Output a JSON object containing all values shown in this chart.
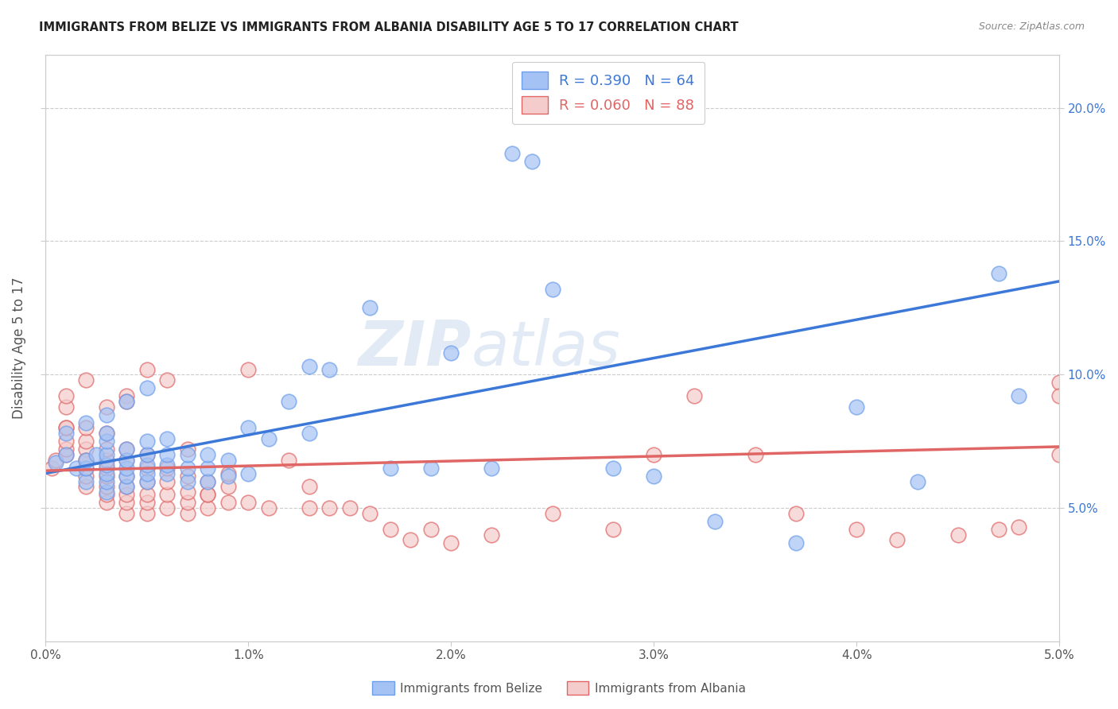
{
  "title": "IMMIGRANTS FROM BELIZE VS IMMIGRANTS FROM ALBANIA DISABILITY AGE 5 TO 17 CORRELATION CHART",
  "source": "Source: ZipAtlas.com",
  "ylabel": "Disability Age 5 to 17",
  "xlim": [
    0.0,
    0.05
  ],
  "ylim": [
    0.0,
    0.22
  ],
  "x_ticks": [
    0.0,
    0.01,
    0.02,
    0.03,
    0.04,
    0.05
  ],
  "x_tick_labels": [
    "0.0%",
    "1.0%",
    "2.0%",
    "3.0%",
    "4.0%",
    "5.0%"
  ],
  "y_ticks": [
    0.05,
    0.1,
    0.15,
    0.2
  ],
  "y_tick_labels": [
    "5.0%",
    "10.0%",
    "15.0%",
    "20.0%"
  ],
  "belize_color": "#a4c2f4",
  "albania_color": "#f4cccc",
  "belize_edge_color": "#6d9eeb",
  "albania_edge_color": "#e06666",
  "belize_line_color": "#3c78d8",
  "albania_line_color": "#cc4125",
  "legend_belize_label": "R = 0.390   N = 64",
  "legend_albania_label": "R = 0.060   N = 88",
  "legend_text_color": "#3c78d8",
  "watermark": "ZIPatlas",
  "belize_scatter_x": [
    0.0005,
    0.001,
    0.001,
    0.0015,
    0.002,
    0.002,
    0.002,
    0.002,
    0.0025,
    0.003,
    0.003,
    0.003,
    0.003,
    0.003,
    0.003,
    0.003,
    0.003,
    0.004,
    0.004,
    0.004,
    0.004,
    0.004,
    0.004,
    0.005,
    0.005,
    0.005,
    0.005,
    0.005,
    0.005,
    0.006,
    0.006,
    0.006,
    0.006,
    0.007,
    0.007,
    0.007,
    0.008,
    0.008,
    0.008,
    0.009,
    0.009,
    0.01,
    0.01,
    0.011,
    0.012,
    0.013,
    0.013,
    0.014,
    0.016,
    0.017,
    0.019,
    0.02,
    0.022,
    0.023,
    0.024,
    0.025,
    0.028,
    0.03,
    0.033,
    0.037,
    0.04,
    0.043,
    0.047,
    0.048
  ],
  "belize_scatter_y": [
    0.067,
    0.07,
    0.078,
    0.065,
    0.06,
    0.065,
    0.068,
    0.082,
    0.07,
    0.056,
    0.06,
    0.063,
    0.066,
    0.07,
    0.075,
    0.078,
    0.085,
    0.058,
    0.062,
    0.065,
    0.068,
    0.072,
    0.09,
    0.06,
    0.063,
    0.066,
    0.07,
    0.075,
    0.095,
    0.063,
    0.066,
    0.07,
    0.076,
    0.06,
    0.065,
    0.07,
    0.06,
    0.065,
    0.07,
    0.062,
    0.068,
    0.063,
    0.08,
    0.076,
    0.09,
    0.078,
    0.103,
    0.102,
    0.125,
    0.065,
    0.065,
    0.108,
    0.065,
    0.183,
    0.18,
    0.132,
    0.065,
    0.062,
    0.045,
    0.037,
    0.088,
    0.06,
    0.138,
    0.092
  ],
  "albania_scatter_x": [
    0.0003,
    0.0005,
    0.001,
    0.001,
    0.001,
    0.001,
    0.001,
    0.001,
    0.002,
    0.002,
    0.002,
    0.002,
    0.002,
    0.002,
    0.002,
    0.003,
    0.003,
    0.003,
    0.003,
    0.003,
    0.003,
    0.003,
    0.003,
    0.004,
    0.004,
    0.004,
    0.004,
    0.004,
    0.004,
    0.004,
    0.005,
    0.005,
    0.005,
    0.005,
    0.005,
    0.005,
    0.006,
    0.006,
    0.006,
    0.006,
    0.007,
    0.007,
    0.007,
    0.007,
    0.008,
    0.008,
    0.008,
    0.009,
    0.009,
    0.009,
    0.01,
    0.01,
    0.011,
    0.012,
    0.013,
    0.013,
    0.014,
    0.015,
    0.016,
    0.017,
    0.018,
    0.019,
    0.02,
    0.022,
    0.025,
    0.028,
    0.03,
    0.032,
    0.035,
    0.037,
    0.04,
    0.042,
    0.045,
    0.047,
    0.048,
    0.05,
    0.05,
    0.05,
    0.001,
    0.002,
    0.002,
    0.003,
    0.004,
    0.004,
    0.005,
    0.006,
    0.007,
    0.008
  ],
  "albania_scatter_y": [
    0.065,
    0.068,
    0.07,
    0.072,
    0.075,
    0.08,
    0.088,
    0.092,
    0.058,
    0.062,
    0.065,
    0.068,
    0.072,
    0.075,
    0.08,
    0.052,
    0.055,
    0.058,
    0.062,
    0.065,
    0.068,
    0.072,
    0.078,
    0.048,
    0.052,
    0.055,
    0.058,
    0.062,
    0.068,
    0.072,
    0.048,
    0.052,
    0.055,
    0.06,
    0.065,
    0.07,
    0.05,
    0.055,
    0.06,
    0.065,
    0.048,
    0.052,
    0.056,
    0.072,
    0.05,
    0.055,
    0.06,
    0.052,
    0.058,
    0.063,
    0.052,
    0.102,
    0.05,
    0.068,
    0.05,
    0.058,
    0.05,
    0.05,
    0.048,
    0.042,
    0.038,
    0.042,
    0.037,
    0.04,
    0.048,
    0.042,
    0.07,
    0.092,
    0.07,
    0.048,
    0.042,
    0.038,
    0.04,
    0.042,
    0.043,
    0.07,
    0.097,
    0.092,
    0.08,
    0.098,
    0.068,
    0.088,
    0.092,
    0.09,
    0.102,
    0.098,
    0.062,
    0.055
  ],
  "belize_trend_x": [
    0.0,
    0.05
  ],
  "belize_trend_y": [
    0.063,
    0.135
  ],
  "albania_trend_x": [
    0.0,
    0.05
  ],
  "albania_trend_y": [
    0.064,
    0.073
  ],
  "footer_label_belize": "Immigrants from Belize",
  "footer_label_albania": "Immigrants from Albania",
  "background_color": "#ffffff",
  "grid_color": "#cccccc",
  "tick_label_color": "#3c78d8"
}
